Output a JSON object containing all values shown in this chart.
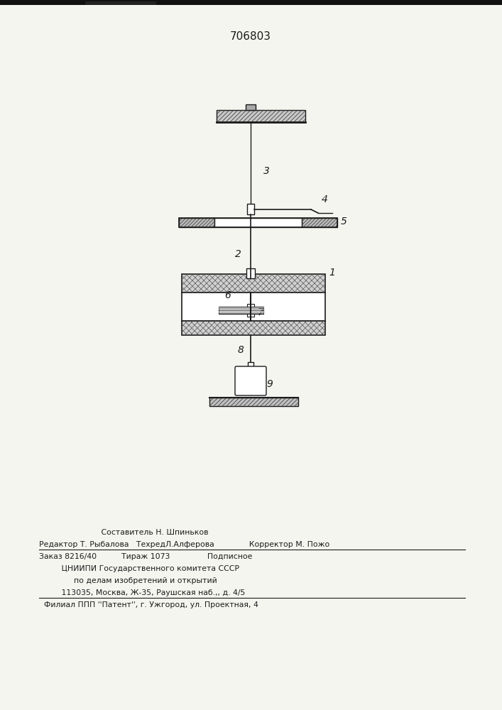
{
  "title": "706803",
  "bg_color": "#f5f5f0",
  "line_color": "#1a1a1a",
  "footer_lines": [
    "                         Составитель Н. Шпиньков",
    "Редактор Т. Рыбалова   ТехредЛ.Алферова              Корректор М. Пожо",
    "Заказ 8216/40          Тираж 1073               Подписное",
    "         ЦНИИПИ Государственного комитета СССР",
    "              по делам изобретений и открытий",
    "         113035, Москва, Ж-35, Раушская наб.,, д. 4/5",
    "  Филиал ППП ''Патент'', г. Ужгород, ул. Проектная, 4"
  ]
}
